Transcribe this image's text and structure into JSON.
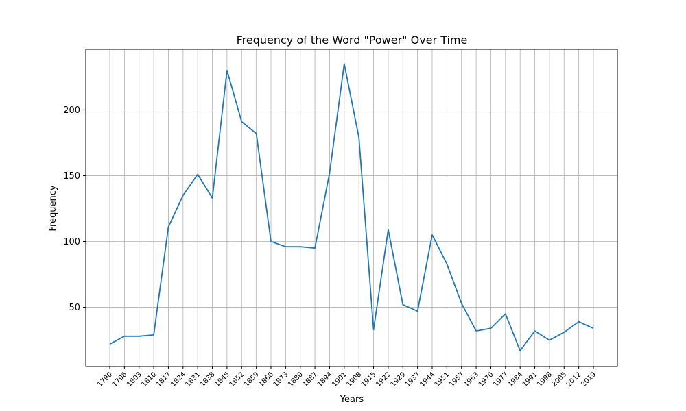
{
  "chart_data": {
    "type": "line",
    "title": "Frequency of the Word \"Power\" Over Time",
    "xlabel": "Years",
    "ylabel": "Frequency",
    "x": [
      "1790",
      "1796",
      "1803",
      "1810",
      "1817",
      "1824",
      "1831",
      "1838",
      "1845",
      "1852",
      "1859",
      "1866",
      "1873",
      "1880",
      "1887",
      "1894",
      "1901",
      "1908",
      "1915",
      "1922",
      "1929",
      "1937",
      "1944",
      "1951",
      "1957",
      "1963",
      "1970",
      "1977",
      "1984",
      "1991",
      "1998",
      "2005",
      "2012",
      "2019"
    ],
    "series": [
      {
        "values": [
          22,
          28,
          28,
          29,
          111,
          135,
          151,
          133,
          230,
          191,
          182,
          100,
          96,
          96,
          95,
          152,
          235,
          179,
          33,
          109,
          52,
          47,
          105,
          83,
          53,
          32,
          34,
          45,
          17,
          32,
          25,
          31,
          39,
          34
        ]
      }
    ],
    "yticks": [
      50,
      100,
      150,
      200
    ],
    "ylim": [
      5,
      246
    ],
    "grid": true,
    "line_color": "#1f77b4",
    "grid_color": "#b0b0b0"
  }
}
